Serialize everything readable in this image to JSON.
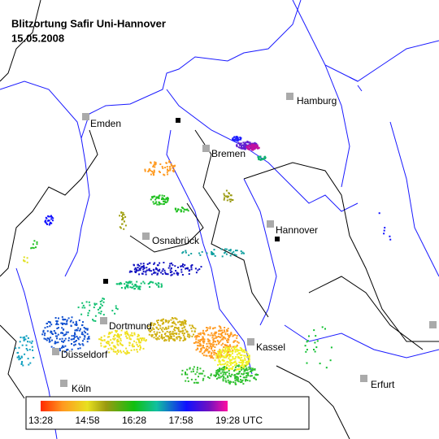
{
  "header": {
    "title": "Blitzortung Safir Uni-Hannover",
    "date": "15.05.2008"
  },
  "cities": [
    "Hamburg",
    "Emden",
    "Bremen",
    "Hannover",
    "Osnabrück",
    "Dortmund",
    "Düsseldorf",
    "Kassel",
    "Köln",
    "Erfurt"
  ],
  "legend": {
    "ticks": [
      "13:28",
      "14:58",
      "16:28",
      "17:58",
      "19:28 UTC"
    ]
  }
}
